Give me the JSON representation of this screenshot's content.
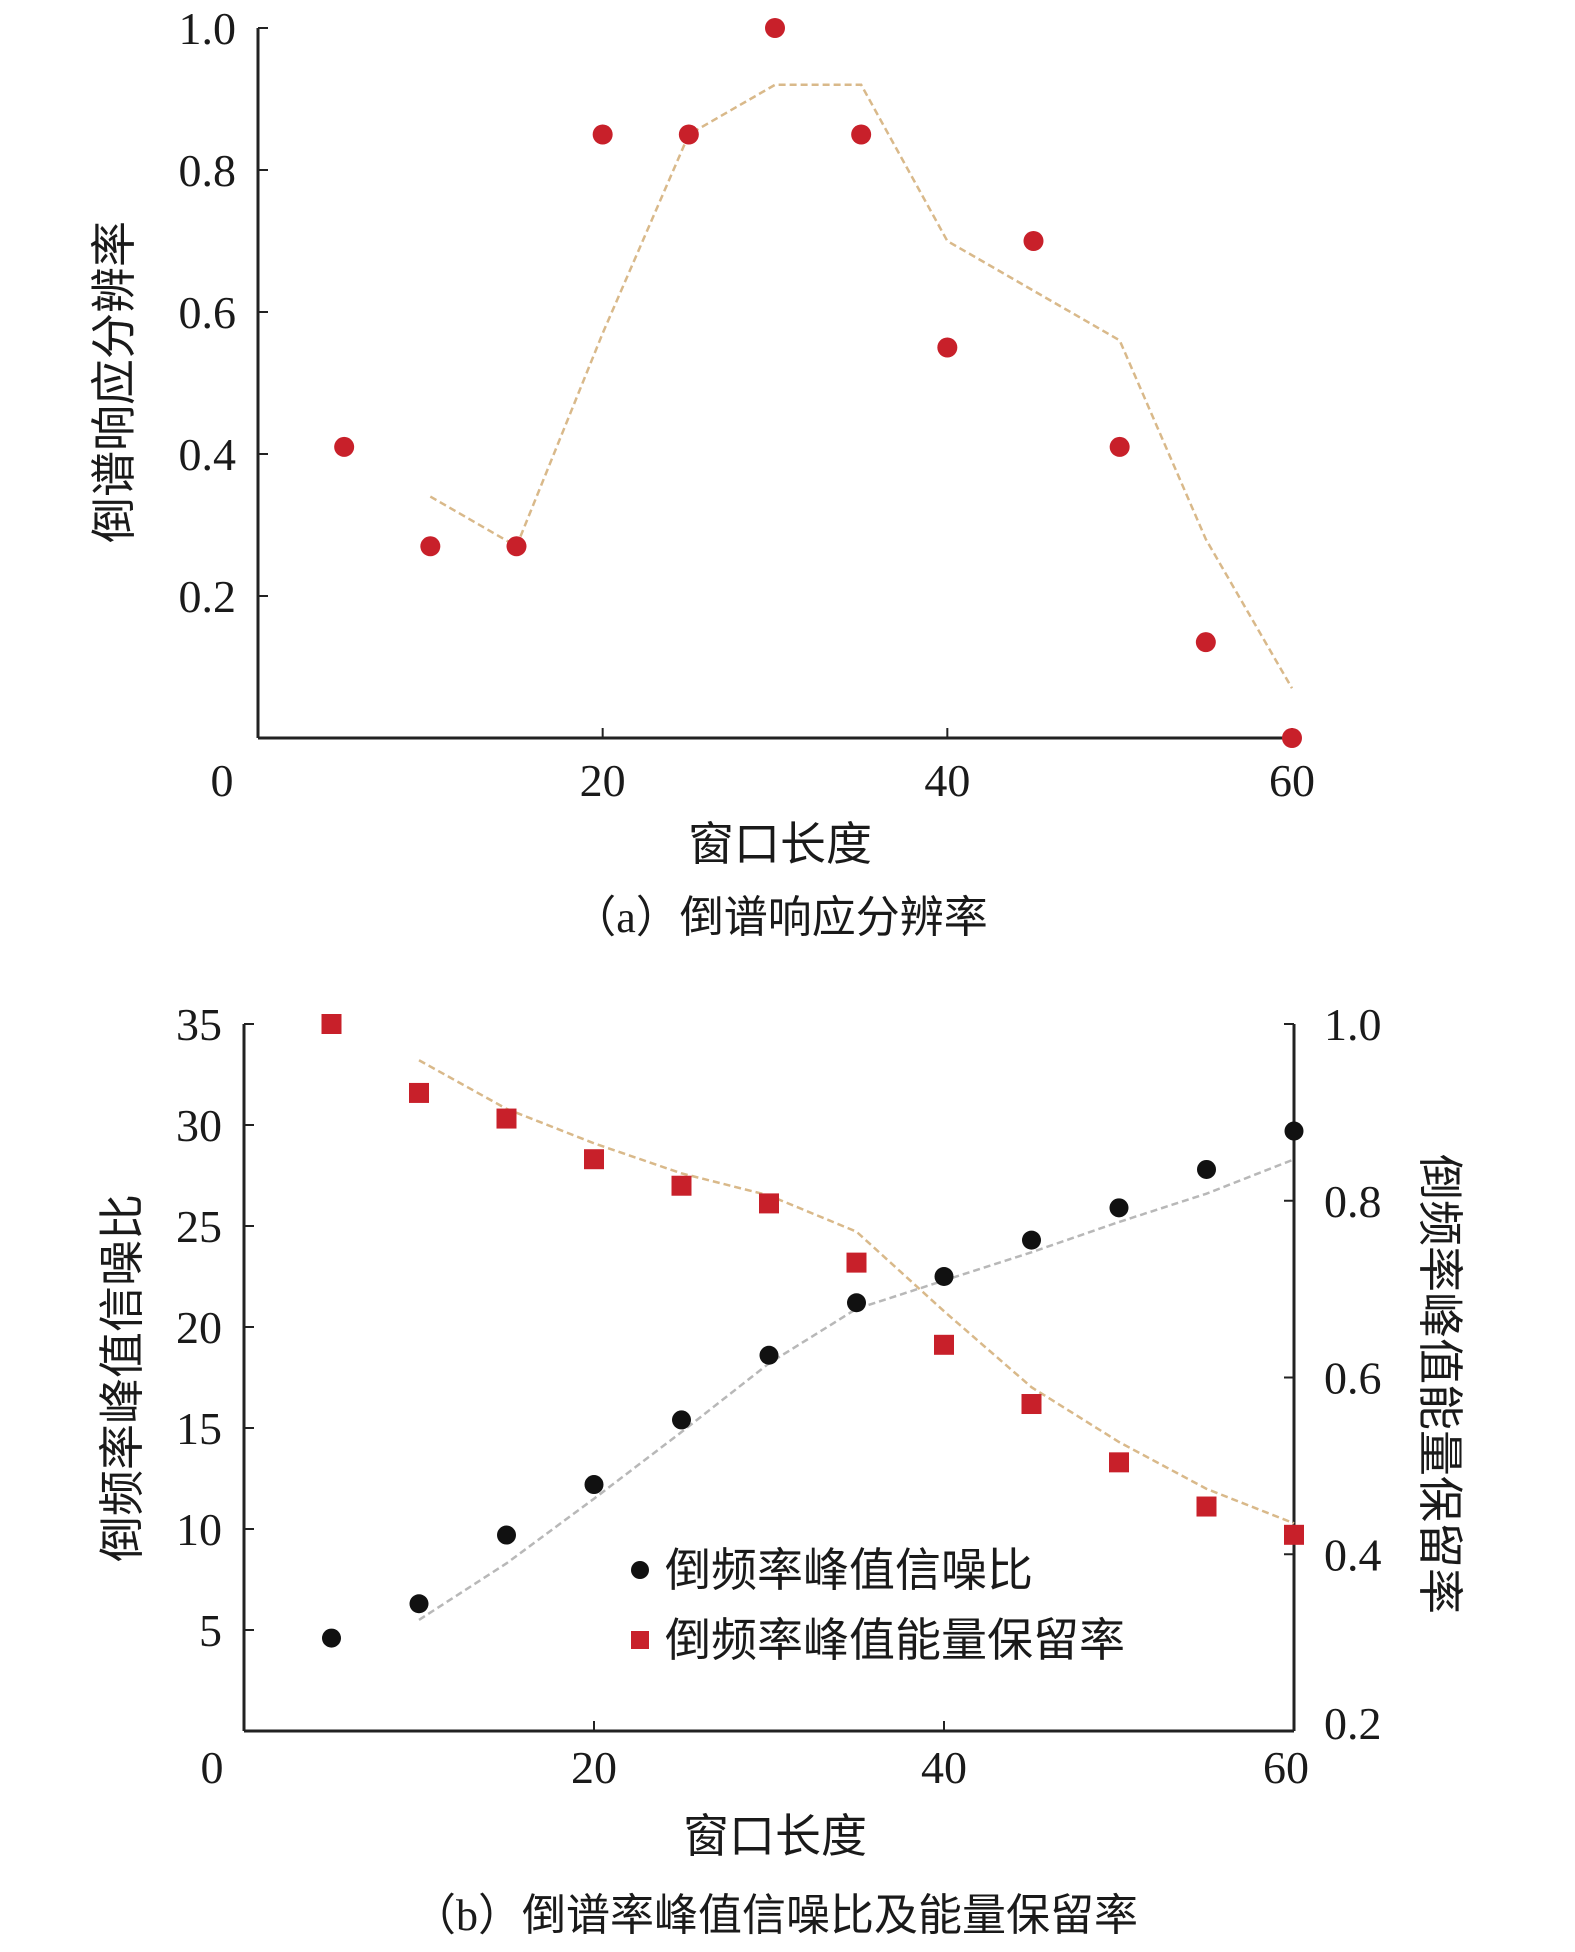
{
  "chart_data": [
    {
      "type": "scatter",
      "caption": "（a）倒谱响应分辨率",
      "xlabel": "窗口长度",
      "ylabel": "倒谱响应分辨率",
      "xlim": [
        0,
        60
      ],
      "ylim": [
        0,
        1.0
      ],
      "xticks": [
        "0",
        "20",
        "40",
        "60"
      ],
      "yticks": [
        "0.2",
        "0.4",
        "0.6",
        "0.8",
        "1.0"
      ],
      "grid": false,
      "points": {
        "x": [
          5,
          10,
          15,
          20,
          25,
          30,
          35,
          40,
          45,
          50,
          55,
          60
        ],
        "y": [
          0.41,
          0.27,
          0.27,
          0.85,
          0.85,
          1.0,
          0.85,
          0.55,
          0.7,
          0.41,
          0.135,
          0.0
        ],
        "color": "#c8202a"
      },
      "trend": {
        "x": [
          10,
          15,
          20,
          25,
          30,
          35,
          40,
          45,
          50,
          55,
          60
        ],
        "y": [
          0.34,
          0.27,
          0.57,
          0.85,
          0.92,
          0.92,
          0.7,
          0.63,
          0.56,
          0.28,
          0.07
        ],
        "color": "#d9b98a"
      }
    },
    {
      "type": "scatter",
      "caption": "（b）倒谱率峰值信噪比及能量保留率",
      "xlabel": "窗口长度",
      "ylabel": "倒频率峰值信噪比",
      "ylabel_right": "倒频率峰值能量保留率",
      "xlim": [
        0,
        60
      ],
      "ylim": [
        0,
        35
      ],
      "ylim_right": [
        0.2,
        1.0
      ],
      "xticks": [
        "0",
        "20",
        "40",
        "60"
      ],
      "yticks": [
        "5",
        "10",
        "15",
        "20",
        "25",
        "30",
        "35"
      ],
      "yticks_right": [
        "0.2",
        "0.4",
        "0.6",
        "0.8",
        "1.0"
      ],
      "grid": false,
      "legend_position": "center-bottom",
      "series": [
        {
          "name": "倒频率峰值信噪比",
          "axis": "left",
          "marker": "circle",
          "color": "#111111",
          "x": [
            5,
            10,
            15,
            20,
            25,
            30,
            35,
            40,
            45,
            50,
            55,
            60
          ],
          "y": [
            4.6,
            6.3,
            9.7,
            12.2,
            15.4,
            18.6,
            21.2,
            22.5,
            24.3,
            25.9,
            27.8,
            29.7
          ],
          "trend": {
            "x": [
              10,
              15,
              20,
              25,
              30,
              35,
              40,
              45,
              50,
              55,
              60
            ],
            "y": [
              5.5,
              8.3,
              11.5,
              14.8,
              18.2,
              20.9,
              22.3,
              23.7,
              25.2,
              26.6,
              28.3
            ],
            "color": "#b8b8b8"
          }
        },
        {
          "name": "倒频率峰值能量保留率",
          "axis": "right",
          "marker": "square",
          "color": "#c8202a",
          "x": [
            5,
            10,
            15,
            20,
            25,
            30,
            35,
            40,
            45,
            50,
            55,
            60
          ],
          "y": [
            1.0,
            0.922,
            0.893,
            0.847,
            0.817,
            0.797,
            0.73,
            0.637,
            0.57,
            0.504,
            0.454,
            0.422
          ],
          "trend": {
            "x": [
              10,
              15,
              20,
              25,
              30,
              35,
              40,
              45,
              50,
              55,
              60
            ],
            "y": [
              0.959,
              0.904,
              0.865,
              0.831,
              0.806,
              0.765,
              0.675,
              0.589,
              0.527,
              0.474,
              0.435
            ],
            "color": "#d9b98a"
          }
        }
      ]
    }
  ]
}
